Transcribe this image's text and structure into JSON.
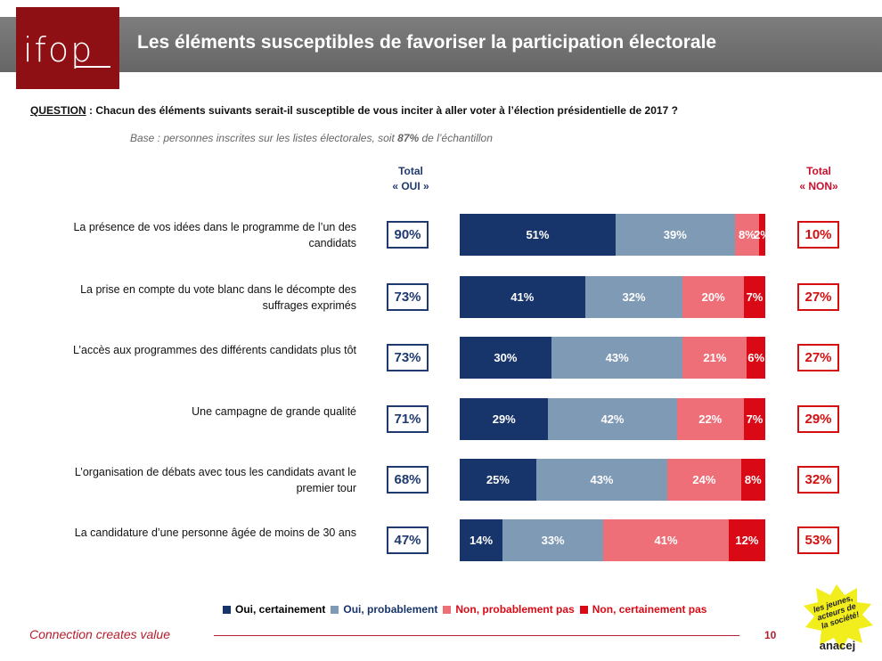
{
  "header": {
    "logo_text": "ifop",
    "title": "Les éléments susceptibles de favoriser la participation électorale"
  },
  "question": {
    "label": "QUESTION",
    "text": " : Chacun des éléments suivants serait-il susceptible de vous inciter à aller voter à l’élection présidentielle de 2017 ?"
  },
  "base": {
    "prefix": "Base : personnes inscrites sur les listes électorales, soit ",
    "pct": "87%",
    "suffix": " de l’échantillon"
  },
  "columns": {
    "oui_line1": "Total",
    "oui_line2": "« OUI »",
    "non_line1": "Total",
    "non_line2": "« NON»"
  },
  "colors": {
    "oui_certainement": "#17356a",
    "oui_probablement": "#7f9ab5",
    "non_probablement_pas": "#ee6f78",
    "non_certainement_pas": "#d90a15",
    "brand_red": "#b41e2e"
  },
  "chart_data": {
    "type": "bar",
    "orientation": "horizontal-stacked",
    "title": "Les éléments susceptibles de favoriser la participation électorale",
    "categories": [
      "La présence de vos idées dans le programme de l’un des candidats",
      "La prise en compte du vote blanc dans le décompte des suffrages exprimés",
      "L’accès aux programmes des différents candidats plus tôt",
      "Une campagne de grande qualité",
      "L’organisation de débats avec tous les candidats avant le premier tour",
      "La candidature d’une personne âgée de moins de 30 ans"
    ],
    "series": [
      {
        "name": "Oui, certainement",
        "values": [
          51,
          41,
          30,
          29,
          25,
          14
        ]
      },
      {
        "name": "Oui, probablement",
        "values": [
          39,
          32,
          43,
          42,
          43,
          33
        ]
      },
      {
        "name": "Non, probablement pas",
        "values": [
          8,
          20,
          21,
          22,
          24,
          41
        ]
      },
      {
        "name": "Non, certainement pas",
        "values": [
          2,
          7,
          6,
          7,
          8,
          12
        ]
      }
    ],
    "total_oui": [
      "90%",
      "73%",
      "73%",
      "71%",
      "68%",
      "47%"
    ],
    "total_non": [
      "10%",
      "27%",
      "27%",
      "29%",
      "32%",
      "53%"
    ],
    "value_suffix": "%",
    "xlim": [
      0,
      100
    ]
  },
  "legend": [
    "Oui, certainement",
    "Oui, probablement",
    "Non, probablement pas",
    "Non, certainement pas"
  ],
  "footer": {
    "tagline": "Connection creates value",
    "page": "10",
    "anacej_line1": "les jeunes,",
    "anacej_line2": "acteurs de",
    "anacej_line3": "la société!",
    "anacej_brand": "anacej"
  }
}
